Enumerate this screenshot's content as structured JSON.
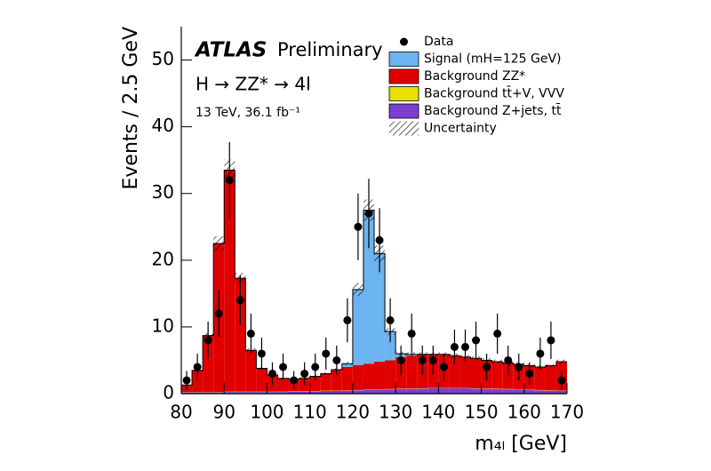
{
  "chart_data": {
    "type": "stacked_histogram",
    "brand": "ATLAS",
    "status": "Preliminary",
    "process": "H → ZZ* → 4l",
    "energy": "13 TeV, 36.1 fb⁻¹",
    "y_label": "Events / 2.5 GeV",
    "x_label": "m₄ₗ [GeV]",
    "xlim": [
      80,
      170
    ],
    "xticks": [
      80,
      90,
      100,
      110,
      120,
      130,
      140,
      150,
      160,
      170
    ],
    "ylim": [
      0,
      55
    ],
    "yticks": [
      0,
      10,
      20,
      30,
      40,
      50
    ],
    "bins": [
      80,
      82.5,
      85,
      87.5,
      90,
      92.5,
      95,
      97.5,
      100,
      102.5,
      105,
      107.5,
      110,
      112.5,
      115,
      117.5,
      120,
      122.5,
      125,
      127.5,
      130,
      132.5,
      135,
      137.5,
      140,
      142.5,
      145,
      147.5,
      150,
      152.5,
      155,
      157.5,
      160,
      162.5,
      165,
      167.5,
      170
    ],
    "series": [
      {
        "name": "Background Z+jets, tt̄",
        "color": "#7a3fd0",
        "values": [
          0.2,
          0.2,
          0.2,
          0.2,
          0.25,
          0.25,
          0.25,
          0.25,
          0.25,
          0.25,
          0.3,
          0.3,
          0.35,
          0.4,
          0.4,
          0.45,
          0.5,
          0.55,
          0.6,
          0.65,
          0.7,
          0.75,
          0.75,
          0.8,
          0.8,
          0.8,
          0.8,
          0.75,
          0.75,
          0.7,
          0.65,
          0.6,
          0.55,
          0.5,
          0.45,
          0.4
        ]
      },
      {
        "name": "Background tt̄+V, VVV",
        "color": "#e8e000",
        "values": [
          0.05,
          0.05,
          0.05,
          0.05,
          0.05,
          0.05,
          0.05,
          0.05,
          0.05,
          0.05,
          0.05,
          0.05,
          0.05,
          0.05,
          0.05,
          0.05,
          0.05,
          0.05,
          0.05,
          0.05,
          0.05,
          0.05,
          0.05,
          0.05,
          0.05,
          0.05,
          0.05,
          0.05,
          0.05,
          0.05,
          0.05,
          0.05,
          0.05,
          0.05,
          0.05,
          0.05
        ]
      },
      {
        "name": "Background ZZ*",
        "color": "#e00000",
        "values": [
          1.05,
          3.25,
          8.45,
          22.25,
          33.2,
          17.0,
          6.2,
          3.5,
          2.5,
          2.0,
          1.85,
          1.95,
          2.2,
          2.55,
          3.15,
          3.5,
          3.75,
          3.9,
          4.15,
          4.3,
          4.75,
          4.9,
          5.1,
          5.05,
          5.05,
          4.85,
          4.65,
          4.5,
          4.2,
          4.05,
          3.9,
          3.75,
          3.6,
          3.45,
          3.7,
          4.35
        ]
      },
      {
        "name": "Signal (mH=125 GeV)",
        "color": "#6cb4f0",
        "values": [
          0,
          0,
          0,
          0,
          0,
          0,
          0,
          0,
          0,
          0,
          0,
          0,
          0,
          0,
          0,
          0.5,
          11.3,
          23.0,
          16.2,
          4.3,
          0.5,
          0.2,
          0,
          0,
          0,
          0,
          0,
          0,
          0,
          0,
          0,
          0,
          0,
          0,
          0,
          0
        ]
      }
    ],
    "uncertainty_name": "Uncertainty",
    "uncertainty": [
      0.1,
      0.2,
      0.4,
      1.1,
      1.6,
      0.8,
      0.3,
      0.2,
      0.15,
      0.15,
      0.15,
      0.15,
      0.15,
      0.2,
      0.2,
      0.25,
      1.0,
      1.6,
      1.2,
      0.5,
      0.3,
      0.3,
      0.3,
      0.3,
      0.3,
      0.3,
      0.3,
      0.3,
      0.3,
      0.3,
      0.3,
      0.25,
      0.25,
      0.25,
      0.25,
      0.3
    ],
    "data": {
      "name": "Data",
      "color": "#000000",
      "x": [
        81.25,
        83.75,
        86.25,
        88.75,
        91.25,
        93.75,
        96.25,
        98.75,
        101.25,
        103.75,
        106.25,
        108.75,
        111.25,
        113.75,
        116.25,
        118.75,
        121.25,
        123.75,
        126.25,
        128.75,
        131.25,
        133.75,
        136.25,
        138.75,
        141.25,
        143.75,
        146.25,
        148.75,
        151.25,
        153.75,
        156.25,
        158.75,
        161.25,
        163.75,
        166.25,
        168.75
      ],
      "values": [
        2,
        4,
        8,
        12,
        32,
        14,
        9,
        6,
        3,
        4,
        2,
        3,
        4,
        6,
        5,
        11,
        25,
        27,
        23,
        11,
        5,
        9,
        5,
        5,
        4,
        7,
        7,
        8,
        4,
        9,
        5,
        4,
        3,
        6,
        8,
        2
      ],
      "errors": [
        1.4,
        2,
        2.8,
        3.5,
        5.7,
        3.7,
        3,
        2.4,
        1.7,
        2,
        1.4,
        1.7,
        2,
        2.4,
        2.2,
        3.3,
        5,
        5.2,
        4.8,
        3.3,
        2.2,
        3,
        2.2,
        2.2,
        2,
        2.6,
        2.6,
        2.8,
        2,
        3,
        2.2,
        2,
        1.7,
        2.4,
        2.8,
        1.4
      ]
    }
  }
}
